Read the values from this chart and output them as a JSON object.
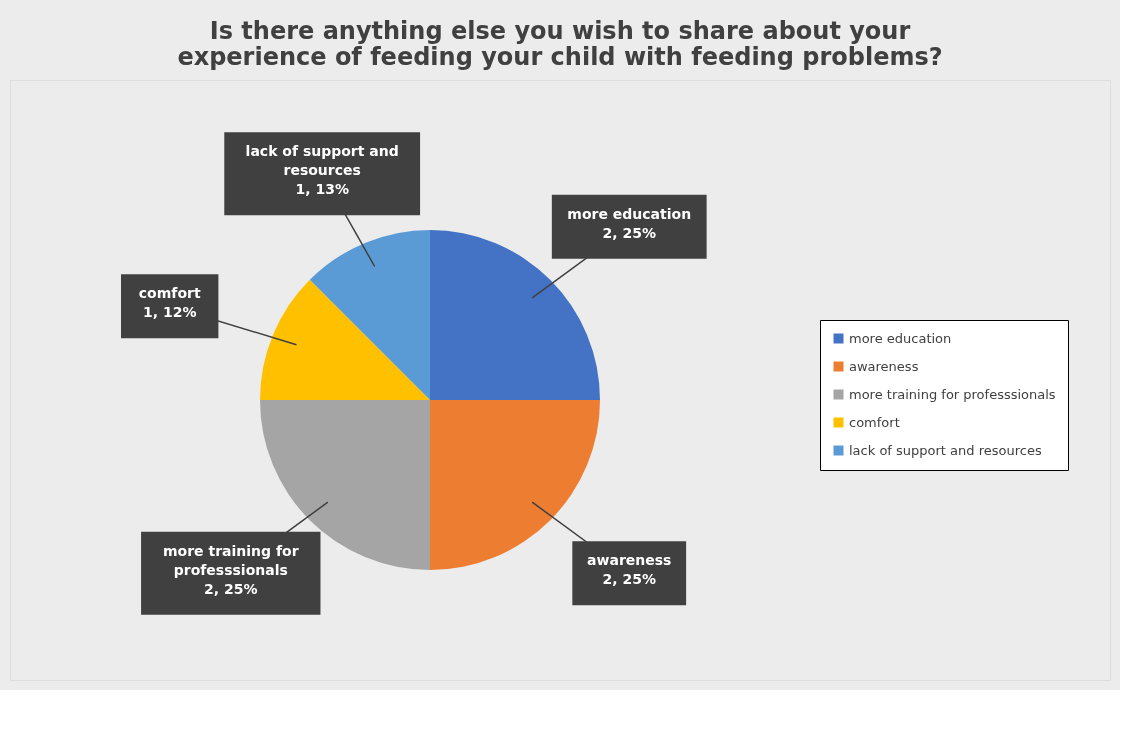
{
  "chart_data": {
    "type": "pie",
    "title": "Is there anything else you wish to share about your experience of feeding your child with feeding problems?",
    "categories": [
      "more education",
      "awareness",
      "more training for professsionals",
      "comfort",
      "lack of support and resources"
    ],
    "values": [
      2,
      2,
      2,
      1,
      1
    ],
    "value_labels": [
      "2, 25%",
      "2, 25%",
      "2, 25%",
      "1, 12%",
      "1, 13%"
    ],
    "colors": [
      "#4472c4",
      "#ed7d31",
      "#a5a5a5",
      "#ffc000",
      "#5b9bd5"
    ],
    "legend": "right"
  }
}
